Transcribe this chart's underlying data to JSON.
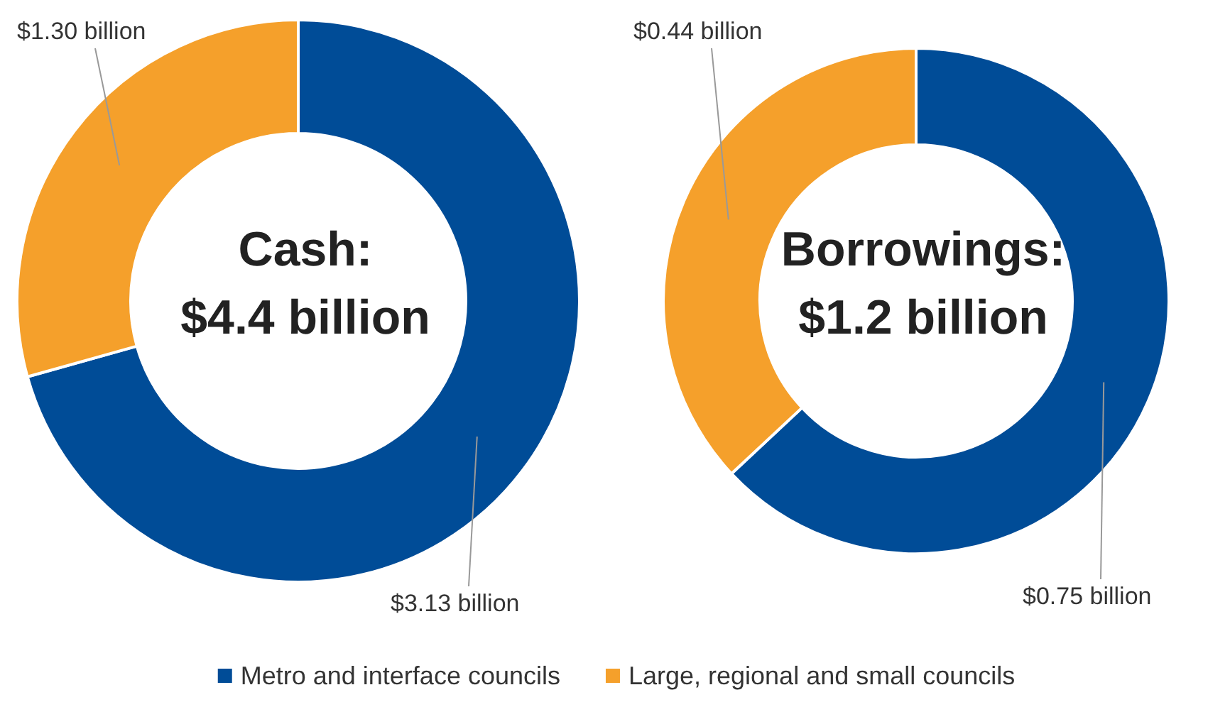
{
  "chart_data": [
    {
      "type": "donut",
      "title": "Cash:",
      "subtitle": "$4.4 billion",
      "categories": [
        "Metro and interface councils",
        "Large, regional and small councils"
      ],
      "values": [
        3.13,
        1.3
      ],
      "colors": [
        "#004c97",
        "#f5a02b"
      ],
      "value_labels": [
        "$3.13 billion",
        "$1.30 billion"
      ],
      "legend": "bottom"
    },
    {
      "type": "donut",
      "title": "Borrowings:",
      "subtitle": "$1.2 billion",
      "categories": [
        null,
        null
      ],
      "values": [
        0.75,
        0.44
      ],
      "colors": [
        "#004c97",
        "#f5a02b"
      ],
      "value_labels": [
        "$0.75 billion",
        "$0.44 billion"
      ]
    }
  ]
}
